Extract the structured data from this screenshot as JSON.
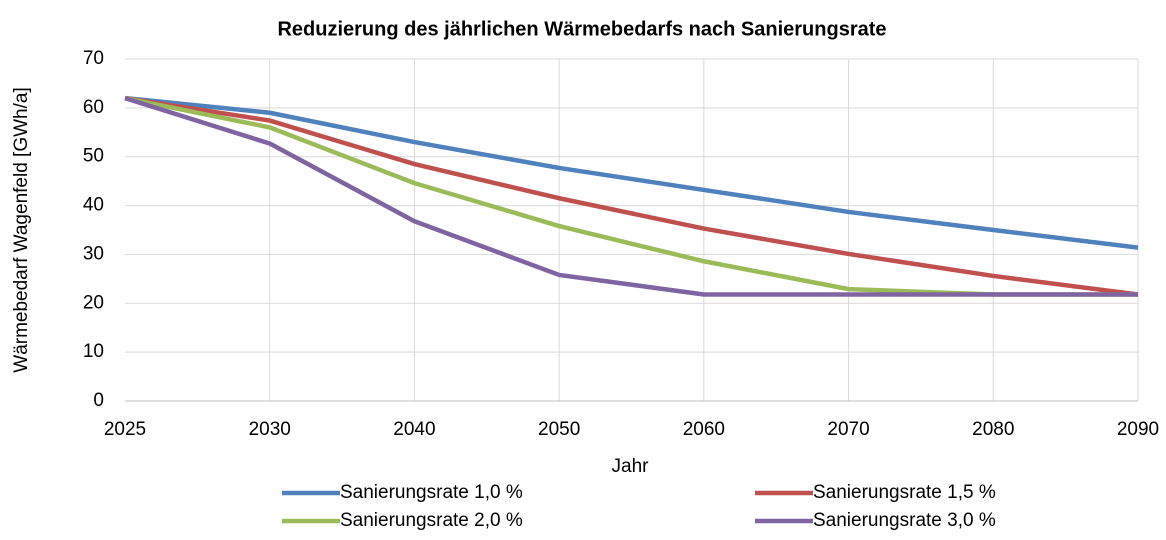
{
  "chart_data": {
    "type": "line",
    "title": "Reduzierung des jährlichen Wärmebedarfs nach Sanierungsrate",
    "x_label": "Jahr",
    "y_label": "Wärmebedarf Wagenfeld [GWh/a]",
    "categories": [
      "2025",
      "2030",
      "2040",
      "2050",
      "2060",
      "2070",
      "2080",
      "2090"
    ],
    "series": [
      {
        "name": "Sanierungsrate 1,0 %",
        "color": "#4f81bd",
        "values": [
          62,
          59,
          53,
          47.7,
          43.2,
          38.7,
          35,
          31.4
        ]
      },
      {
        "name": "Sanierungsrate 1,5 %",
        "color": "#c0504d",
        "values": [
          62,
          57.4,
          48.5,
          41.5,
          35.3,
          30.1,
          25.6,
          21.8
        ]
      },
      {
        "name": "Sanierungsrate 2,0 %",
        "color": "#9bbb59",
        "values": [
          62,
          56,
          44.6,
          35.8,
          28.6,
          22.9,
          21.8,
          21.8
        ]
      },
      {
        "name": "Sanierungsrate 3,0 %",
        "color": "#8064a2",
        "values": [
          62,
          52.7,
          36.8,
          25.8,
          21.8,
          21.8,
          21.8,
          21.8
        ]
      }
    ],
    "ylim": [
      0,
      70
    ],
    "yticks": [
      0,
      10,
      20,
      30,
      40,
      50,
      60,
      70
    ],
    "grid": true,
    "legend": "bottom"
  }
}
